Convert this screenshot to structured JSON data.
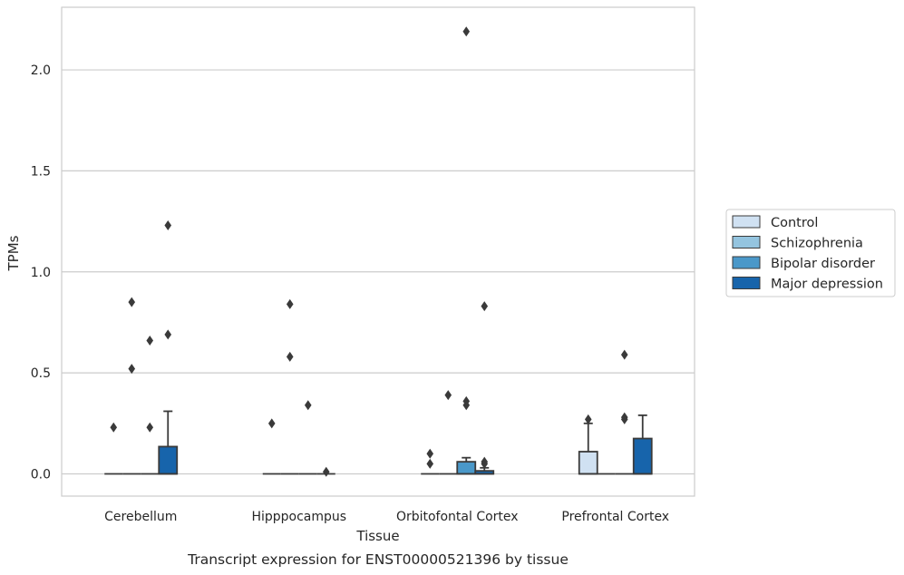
{
  "chart_data": {
    "type": "box",
    "ylabel": "TPMs",
    "xlabel": "Tissue",
    "caption": "Transcript expression for ENST00000521396 by tissue",
    "ylim": [
      -0.11,
      2.31
    ],
    "yticks": [
      0.0,
      0.5,
      1.0,
      1.5,
      2.0
    ],
    "ytick_labels": [
      "0.0",
      "0.5",
      "1.0",
      "1.5",
      "2.0"
    ],
    "grid": "horizontal",
    "legend_position": "right",
    "categories": [
      "Cerebellum",
      "Hipppocampus",
      "Orbitofontal Cortex",
      "Prefrontal Cortex"
    ],
    "series": [
      {
        "name": "Control",
        "color": "#d0e1f2",
        "boxes": [
          {
            "q1": 0,
            "median": 0,
            "q3": 0,
            "whisker_low": 0,
            "whisker_high": 0,
            "outliers": [
              0.23
            ]
          },
          {
            "q1": 0,
            "median": 0,
            "q3": 0,
            "whisker_low": 0,
            "whisker_high": 0,
            "outliers": [
              0.25
            ]
          },
          {
            "q1": 0,
            "median": 0,
            "q3": 0,
            "whisker_low": 0,
            "whisker_high": 0,
            "outliers": [
              0.1,
              0.05
            ]
          },
          {
            "q1": 0,
            "median": 0,
            "q3": 0.11,
            "whisker_low": 0,
            "whisker_high": 0.25,
            "outliers": [
              0.27
            ]
          }
        ]
      },
      {
        "name": "Schizophrenia",
        "color": "#94c4df",
        "boxes": [
          {
            "q1": 0,
            "median": 0,
            "q3": 0,
            "whisker_low": 0,
            "whisker_high": 0,
            "outliers": [
              0.85,
              0.52
            ]
          },
          {
            "q1": 0,
            "median": 0,
            "q3": 0,
            "whisker_low": 0,
            "whisker_high": 0,
            "outliers": [
              0.84,
              0.58
            ]
          },
          {
            "q1": 0,
            "median": 0,
            "q3": 0,
            "whisker_low": 0,
            "whisker_high": 0,
            "outliers": [
              0.39
            ]
          },
          {
            "q1": 0,
            "median": 0,
            "q3": 0,
            "whisker_low": 0,
            "whisker_high": 0,
            "outliers": []
          }
        ]
      },
      {
        "name": "Bipolar disorder",
        "color": "#4a98c9",
        "boxes": [
          {
            "q1": 0,
            "median": 0,
            "q3": 0,
            "whisker_low": 0,
            "whisker_high": 0,
            "outliers": [
              0.66,
              0.23
            ]
          },
          {
            "q1": 0,
            "median": 0,
            "q3": 0,
            "whisker_low": 0,
            "whisker_high": 0,
            "outliers": [
              0.34
            ]
          },
          {
            "q1": 0,
            "median": 0,
            "q3": 0.06,
            "whisker_low": 0,
            "whisker_high": 0.08,
            "outliers": [
              2.19,
              0.36,
              0.34
            ]
          },
          {
            "q1": 0,
            "median": 0,
            "q3": 0,
            "whisker_low": 0,
            "whisker_high": 0,
            "outliers": [
              0.59,
              0.28,
              0.27
            ]
          }
        ]
      },
      {
        "name": "Major depression",
        "color": "#1764ab",
        "boxes": [
          {
            "q1": 0,
            "median": 0,
            "q3": 0.135,
            "whisker_low": 0,
            "whisker_high": 0.31,
            "outliers": [
              1.23,
              0.69
            ]
          },
          {
            "q1": 0,
            "median": 0,
            "q3": 0,
            "whisker_low": 0,
            "whisker_high": 0,
            "outliers": [
              0.01
            ]
          },
          {
            "q1": 0,
            "median": 0,
            "q3": 0.015,
            "whisker_low": 0,
            "whisker_high": 0.03,
            "outliers": [
              0.83,
              0.06,
              0.05
            ]
          },
          {
            "q1": 0,
            "median": 0,
            "q3": 0.175,
            "whisker_low": 0,
            "whisker_high": 0.29,
            "outliers": []
          }
        ]
      }
    ],
    "colors": {
      "grid": "#cccccc",
      "axis": "#cccccc",
      "box_edge": "#3a3a3a",
      "outlier": "#3a3a3a",
      "legend_border": "#cccccc"
    }
  }
}
